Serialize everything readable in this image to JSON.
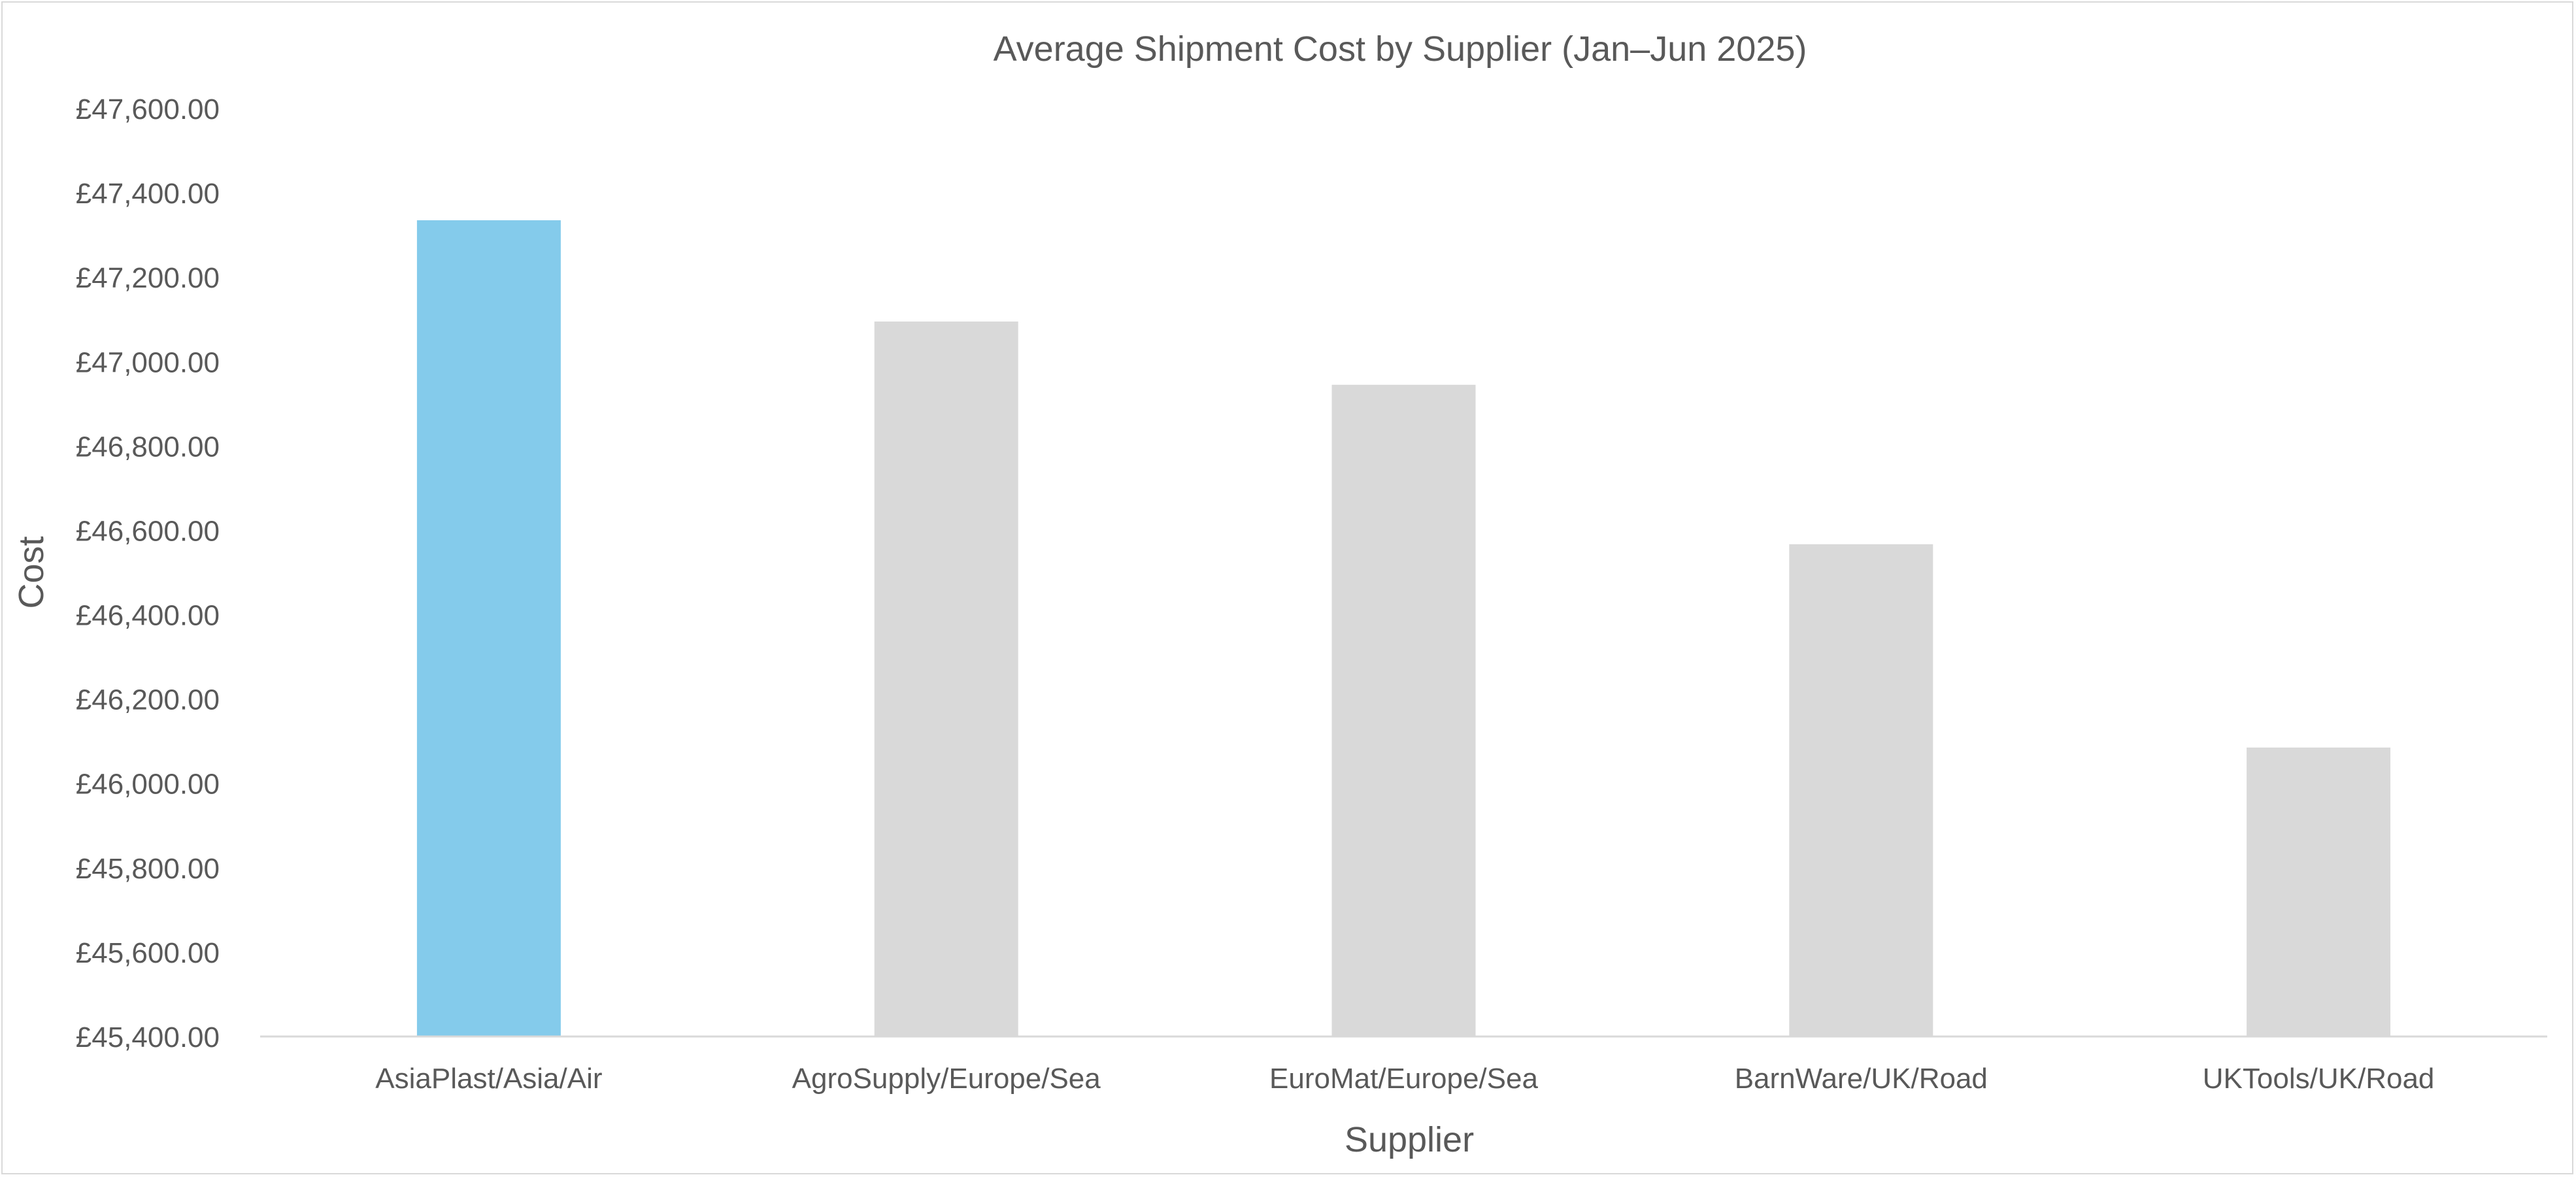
{
  "chart_data": {
    "type": "bar",
    "title": "Average Shipment Cost by Supplier (Jan–Jun 2025)",
    "xlabel": "Supplier",
    "ylabel": "Cost",
    "ylim": [
      45400,
      47600
    ],
    "yticks": [
      45400,
      45600,
      45800,
      46000,
      46200,
      46400,
      46600,
      46800,
      47000,
      47200,
      47400,
      47600
    ],
    "ytick_labels": [
      "£45,400.00",
      "£45,600.00",
      "£45,800.00",
      "£46,000.00",
      "£46,200.00",
      "£46,400.00",
      "£46,600.00",
      "£46,800.00",
      "£47,000.00",
      "£47,200.00",
      "£47,400.00",
      "£47,600.00"
    ],
    "categories": [
      "AsiaPlast/Asia/Air",
      "AgroSupply/Europe/Sea",
      "EuroMat/Europe/Sea",
      "BarnWare/UK/Road",
      "UKTools/UK/Road"
    ],
    "values": [
      47335,
      47095,
      46945,
      46567,
      46085
    ],
    "bar_colors": [
      "#84CBEB",
      "#D9D9D9",
      "#D9D9D9",
      "#D9D9D9",
      "#D9D9D9"
    ],
    "grid": false,
    "legend": "none"
  }
}
